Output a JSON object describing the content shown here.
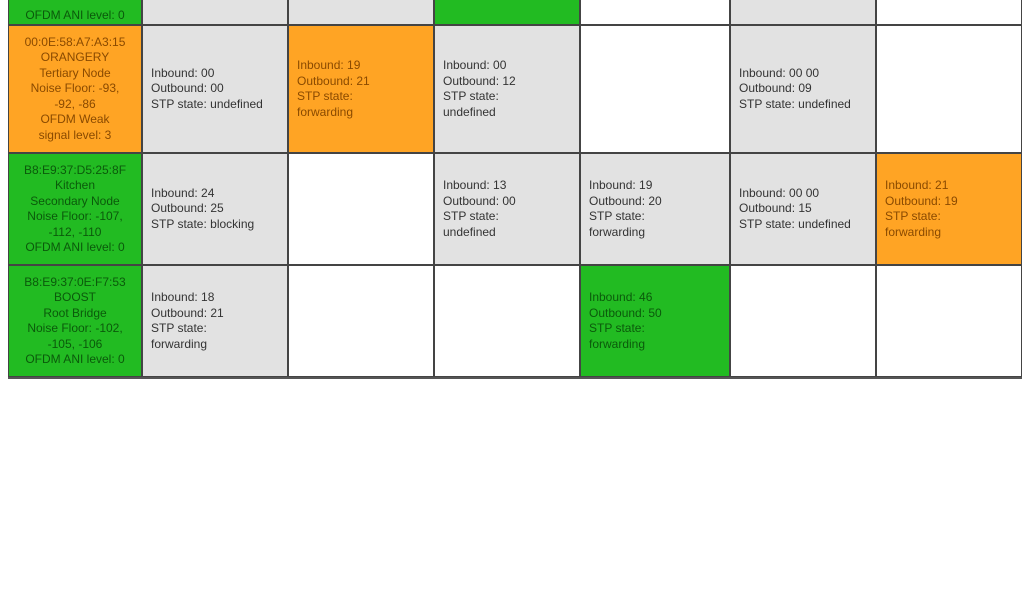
{
  "colors": {
    "orange": "#ffa424",
    "green": "#22bb22",
    "gray": "#e2e2e2",
    "white": "#ffffff"
  },
  "rows": [
    {
      "node": {
        "lines": [
          "OFDM ANI level: 0"
        ],
        "color": "green"
      },
      "cells": [
        {
          "color": "gray",
          "lines": []
        },
        {
          "color": "gray",
          "lines": []
        },
        {
          "color": "green",
          "lines": []
        },
        {
          "color": "white",
          "lines": []
        },
        {
          "color": "gray",
          "lines": []
        },
        {
          "color": "white",
          "lines": []
        }
      ]
    },
    {
      "node": {
        "lines": [
          "00:0E:58:A7:A3:15",
          "ORANGERY",
          "Tertiary Node",
          "Noise Floor: -93,",
          "-92, -86",
          "OFDM Weak",
          "signal level: 3"
        ],
        "color": "orange"
      },
      "cells": [
        {
          "color": "gray",
          "lines": [
            "Inbound: 00",
            "Outbound: 00",
            "STP state: undefined"
          ]
        },
        {
          "color": "orange",
          "lines": [
            "Inbound: 19",
            "Outbound: 21",
            "STP state:",
            "forwarding"
          ]
        },
        {
          "color": "gray",
          "lines": [
            "Inbound: 00",
            "Outbound: 12",
            "STP state:",
            "undefined"
          ]
        },
        {
          "color": "white",
          "lines": []
        },
        {
          "color": "gray",
          "lines": [
            "Inbound: 00 00",
            "Outbound: 09",
            "STP state: undefined"
          ]
        },
        {
          "color": "white",
          "lines": []
        }
      ]
    },
    {
      "node": {
        "lines": [
          "B8:E9:37:D5:25:8F",
          "Kitchen",
          "Secondary Node",
          "Noise Floor: -107,",
          "-112, -110",
          "OFDM ANI level: 0"
        ],
        "color": "green"
      },
      "cells": [
        {
          "color": "gray",
          "lines": [
            "Inbound: 24",
            "Outbound: 25",
            "STP state: blocking"
          ]
        },
        {
          "color": "white",
          "lines": []
        },
        {
          "color": "gray",
          "lines": [
            "Inbound: 13",
            "Outbound: 00",
            "STP state:",
            "undefined"
          ]
        },
        {
          "color": "gray",
          "lines": [
            "Inbound: 19",
            "Outbound: 20",
            "STP state:",
            "forwarding"
          ]
        },
        {
          "color": "gray",
          "lines": [
            "Inbound: 00 00",
            "Outbound: 15",
            "STP state: undefined"
          ]
        },
        {
          "color": "orange",
          "lines": [
            "Inbound: 21",
            "Outbound: 19",
            "STP state:",
            "forwarding"
          ]
        }
      ]
    },
    {
      "node": {
        "lines": [
          "B8:E9:37:0E:F7:53",
          "BOOST",
          "Root Bridge",
          "Noise Floor: -102,",
          "-105, -106",
          "OFDM ANI level: 0"
        ],
        "color": "green"
      },
      "cells": [
        {
          "color": "gray",
          "lines": [
            "Inbound: 18",
            "Outbound: 21",
            "STP state:",
            "forwarding"
          ]
        },
        {
          "color": "white",
          "lines": []
        },
        {
          "color": "white",
          "lines": []
        },
        {
          "color": "green",
          "lines": [
            "Inbound: 46",
            "Outbound: 50",
            "STP state:",
            "forwarding"
          ]
        },
        {
          "color": "white",
          "lines": []
        },
        {
          "color": "white",
          "lines": []
        }
      ]
    }
  ]
}
